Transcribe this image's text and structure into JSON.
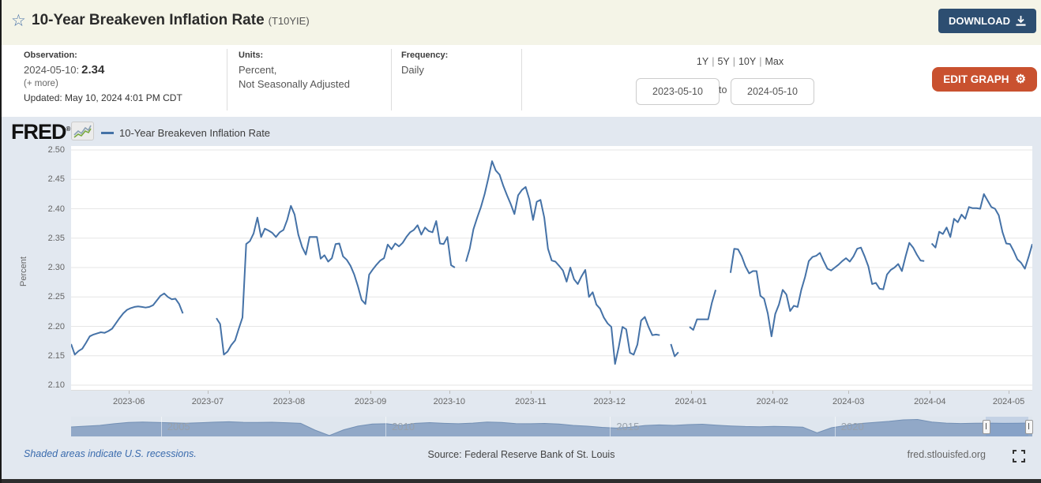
{
  "header": {
    "title": "10-Year Breakeven Inflation Rate",
    "series_id": "(T10YIE)",
    "download_label": "DOWNLOAD"
  },
  "meta": {
    "observation_label": "Observation:",
    "observation_date": "2024-05-10:",
    "observation_value": "2.34",
    "more_link": "(+ more)",
    "updated": "Updated: May 10, 2024 4:01 PM CDT",
    "units_label": "Units:",
    "units_line1": "Percent,",
    "units_line2": "Not Seasonally Adjusted",
    "frequency_label": "Frequency:",
    "frequency_value": "Daily"
  },
  "range_selector": {
    "options": [
      "1Y",
      "5Y",
      "10Y",
      "Max"
    ],
    "separator": "|",
    "start_date": "2023-05-10",
    "to_label": "to",
    "end_date": "2024-05-10",
    "edit_graph_label": "EDIT GRAPH"
  },
  "graph": {
    "logo_text": "FRED",
    "legend_label": "10-Year Breakeven Inflation Rate",
    "y_axis_title": "Percent"
  },
  "footer": {
    "recessions_note": "Shaded areas indicate U.S. recessions.",
    "source": "Source: Federal Reserve Bank of St. Louis",
    "site": "fred.stlouisfed.org"
  },
  "colors": {
    "header_bg": "#f4f4e7",
    "download_btn": "#2d4e71",
    "edit_graph_btn": "#c9512f",
    "graph_bg": "#e2e8f0",
    "line": "#4572a7",
    "minimap_fill": "#91a8c7",
    "recession_link": "#3a6bad"
  },
  "chart_data": {
    "type": "line",
    "title": "10-Year Breakeven Inflation Rate (T10YIE)",
    "ylabel": "Percent",
    "ylim": [
      2.1,
      2.5
    ],
    "y_ticks": [
      "2.50",
      "2.45",
      "2.40",
      "2.35",
      "2.30",
      "2.25",
      "2.20",
      "2.15",
      "2.10"
    ],
    "x_start": "2023-05-10",
    "x_end": "2024-05-10",
    "x_tick_labels": [
      "2023-06",
      "2023-07",
      "2023-08",
      "2023-09",
      "2023-10",
      "2023-11",
      "2023-12",
      "2024-01",
      "2024-02",
      "2024-03",
      "2024-04",
      "2024-05"
    ],
    "grid": true,
    "legend_position": "top-left",
    "line_color": "#4572a7",
    "values": [
      2.17,
      2.152,
      2.158,
      2.162,
      2.172,
      2.183,
      2.186,
      2.188,
      2.19,
      2.189,
      2.192,
      2.196,
      2.205,
      2.214,
      2.222,
      2.228,
      2.231,
      2.233,
      2.234,
      2.233,
      2.232,
      2.233,
      2.236,
      2.244,
      2.252,
      2.256,
      2.25,
      2.246,
      2.247,
      2.238,
      2.222,
      null,
      null,
      null,
      null,
      null,
      null,
      null,
      null,
      2.214,
      2.204,
      2.152,
      2.157,
      2.168,
      2.176,
      2.196,
      2.215,
      2.34,
      2.345,
      2.358,
      2.385,
      2.352,
      2.366,
      2.363,
      2.359,
      2.352,
      2.36,
      2.364,
      2.381,
      2.405,
      2.39,
      2.356,
      2.335,
      2.322,
      2.352,
      2.352,
      2.352,
      2.315,
      2.321,
      2.31,
      2.316,
      2.34,
      2.341,
      2.319,
      2.313,
      2.303,
      2.288,
      2.268,
      2.245,
      2.238,
      2.288,
      2.297,
      2.305,
      2.312,
      2.316,
      2.339,
      2.331,
      2.341,
      2.336,
      2.342,
      2.352,
      2.36,
      2.364,
      2.372,
      2.356,
      2.368,
      2.362,
      2.36,
      2.379,
      2.341,
      2.34,
      2.352,
      2.304,
      2.3,
      null,
      null,
      2.31,
      2.332,
      2.365,
      2.385,
      2.403,
      2.425,
      2.452,
      2.481,
      2.465,
      2.458,
      2.439,
      2.423,
      2.408,
      2.391,
      2.423,
      2.432,
      2.437,
      2.416,
      2.381,
      2.412,
      2.415,
      2.385,
      2.332,
      2.312,
      2.31,
      2.303,
      2.295,
      2.276,
      2.3,
      2.28,
      2.272,
      2.285,
      2.296,
      2.25,
      2.258,
      2.237,
      2.23,
      2.215,
      2.205,
      2.199,
      2.136,
      2.165,
      2.199,
      2.195,
      2.155,
      2.152,
      2.169,
      2.21,
      2.216,
      2.199,
      2.185,
      2.186,
      2.185,
      null,
      null,
      2.17,
      2.149,
      2.156,
      null,
      null,
      2.199,
      2.194,
      2.212,
      2.212,
      2.212,
      2.212,
      2.24,
      2.262,
      null,
      null,
      null,
      2.291,
      2.332,
      2.331,
      2.319,
      2.302,
      2.29,
      2.294,
      2.294,
      2.252,
      2.247,
      2.222,
      2.183,
      2.221,
      2.237,
      2.262,
      2.254,
      2.226,
      2.235,
      2.233,
      2.262,
      2.284,
      2.311,
      2.318,
      2.32,
      2.325,
      2.311,
      2.298,
      2.295,
      2.3,
      2.305,
      2.311,
      2.316,
      2.31,
      2.319,
      2.332,
      2.334,
      2.319,
      2.302,
      2.272,
      2.274,
      2.264,
      2.263,
      2.288,
      2.296,
      2.3,
      2.306,
      2.294,
      2.319,
      2.342,
      2.334,
      2.322,
      2.312,
      2.311,
      null,
      2.341,
      2.334,
      2.361,
      2.357,
      2.368,
      2.352,
      2.383,
      2.377,
      2.39,
      2.383,
      2.403,
      2.401,
      2.401,
      2.4,
      2.425,
      2.414,
      2.403,
      2.4,
      2.389,
      2.36,
      2.341,
      2.34,
      2.328,
      2.314,
      2.308,
      2.298,
      2.318,
      2.34
    ],
    "minimap": {
      "x_start": 2003,
      "x_end": 2024.4,
      "x_tick_labels": [
        "2005",
        "2010",
        "2015",
        "2020"
      ],
      "x_tick_years": [
        2005,
        2010,
        2015,
        2020
      ],
      "selection_years": [
        2023.36,
        2024.31
      ],
      "ylim": [
        0,
        3.15
      ],
      "values": [
        1.65,
        1.78,
        1.92,
        2.2,
        2.42,
        2.5,
        2.42,
        2.35,
        2.3,
        2.38,
        2.48,
        2.55,
        2.45,
        2.42,
        2.46,
        2.38,
        2.28,
        1.1,
        0.15,
        1.15,
        1.8,
        2.15,
        2.2,
        1.92,
        2.28,
        2.4,
        2.27,
        2.2,
        2.32,
        2.5,
        2.44,
        2.22,
        2.2,
        2.26,
        2.16,
        1.92,
        1.78,
        1.58,
        1.45,
        1.62,
        1.9,
        2.0,
        1.92,
        2.05,
        2.12,
        1.95,
        1.82,
        1.72,
        1.68,
        1.75,
        1.7,
        1.62,
        0.62,
        1.5,
        1.9,
        2.25,
        2.42,
        2.62,
        2.88,
        2.95,
        2.5,
        2.32,
        2.24,
        2.3,
        2.32,
        2.28,
        2.3,
        2.34
      ]
    }
  }
}
